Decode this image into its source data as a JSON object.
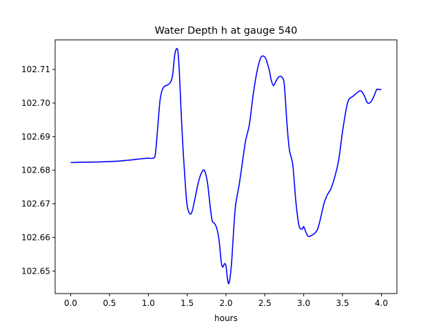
{
  "chart_data": {
    "type": "line",
    "title": "Water Depth h at gauge 540",
    "xlabel": "hours",
    "ylabel": "",
    "xlim": [
      -0.2,
      4.2
    ],
    "ylim": [
      102.6433,
      102.7188
    ],
    "xticks": [
      0.0,
      0.5,
      1.0,
      1.5,
      2.0,
      2.5,
      3.0,
      3.5,
      4.0
    ],
    "xtick_labels": [
      "0.0",
      "0.5",
      "1.0",
      "1.5",
      "2.0",
      "2.5",
      "3.0",
      "3.5",
      "4.0"
    ],
    "yticks": [
      102.65,
      102.66,
      102.67,
      102.68,
      102.69,
      102.7,
      102.71
    ],
    "ytick_labels": [
      "102.65",
      "102.66",
      "102.67",
      "102.68",
      "102.69",
      "102.70",
      "102.71"
    ],
    "grid": false,
    "line_color": "#0000ff",
    "series": [
      {
        "name": "",
        "x": [
          0.0,
          0.2,
          0.4,
          0.6,
          0.7,
          0.8,
          0.9,
          0.95,
          1.0,
          1.06,
          1.09,
          1.12,
          1.15,
          1.18,
          1.21,
          1.24,
          1.28,
          1.31,
          1.34,
          1.36,
          1.38,
          1.4,
          1.42,
          1.45,
          1.48,
          1.5,
          1.53,
          1.56,
          1.6,
          1.64,
          1.68,
          1.72,
          1.76,
          1.79,
          1.82,
          1.85,
          1.88,
          1.91,
          1.94,
          1.96,
          1.98,
          2.0,
          2.02,
          2.04,
          2.07,
          2.1,
          2.12,
          2.14,
          2.17,
          2.2,
          2.25,
          2.3,
          2.35,
          2.4,
          2.45,
          2.5,
          2.53,
          2.56,
          2.58,
          2.61,
          2.64,
          2.68,
          2.72,
          2.75,
          2.78,
          2.8,
          2.82,
          2.86,
          2.9,
          2.94,
          2.98,
          3.0,
          3.03,
          3.06,
          3.1,
          3.14,
          3.18,
          3.22,
          3.26,
          3.3,
          3.35,
          3.4,
          3.45,
          3.5,
          3.55,
          3.58,
          3.62,
          3.65,
          3.7,
          3.74,
          3.78,
          3.82,
          3.86,
          3.9,
          3.94,
          3.97,
          4.0
        ],
        "y": [
          102.6823,
          102.6824,
          102.6825,
          102.6827,
          102.6829,
          102.6831,
          102.6834,
          102.6835,
          102.6836,
          102.6836,
          102.6848,
          102.6925,
          102.7007,
          102.704,
          102.705,
          102.7053,
          102.706,
          102.708,
          102.7143,
          102.716,
          102.7155,
          102.709,
          102.6985,
          102.685,
          102.6745,
          102.6695,
          102.6672,
          102.6675,
          102.6715,
          102.676,
          102.679,
          102.68,
          102.6765,
          102.6705,
          102.6652,
          102.6642,
          102.6628,
          102.6592,
          102.6525,
          102.6512,
          102.6522,
          102.6515,
          102.6475,
          102.6465,
          102.652,
          102.6628,
          102.669,
          102.672,
          102.6758,
          102.6805,
          102.6885,
          102.6935,
          102.7025,
          102.7095,
          102.7136,
          102.7137,
          102.712,
          102.7095,
          102.707,
          102.7052,
          102.7064,
          102.7078,
          102.7077,
          102.7055,
          102.6955,
          102.6895,
          102.6855,
          102.6815,
          102.6705,
          102.6635,
          102.6625,
          102.6632,
          102.6615,
          102.6603,
          102.6606,
          102.6612,
          102.6625,
          102.666,
          102.67,
          102.6725,
          102.6745,
          102.678,
          102.683,
          102.6915,
          102.6985,
          102.701,
          102.7018,
          102.7023,
          102.7033,
          102.7036,
          102.7022,
          102.7001,
          102.7002,
          102.7018,
          102.704,
          102.704,
          102.704
        ]
      }
    ]
  }
}
